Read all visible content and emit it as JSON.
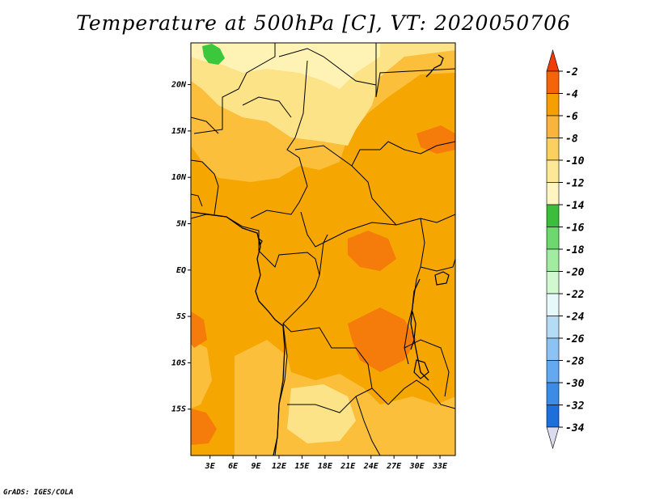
{
  "title": "Temperature at 500hPa [C], VT: 2020050706",
  "credit": "GrADS: IGES/COLA",
  "map": {
    "projection": "latlon",
    "lon_range": [
      0.5,
      35
    ],
    "lat_range": [
      -20,
      24.5
    ],
    "x_ticks": [
      "3E",
      "6E",
      "9E",
      "12E",
      "15E",
      "18E",
      "21E",
      "24E",
      "27E",
      "30E",
      "33E"
    ],
    "x_tick_values": [
      3,
      6,
      9,
      12,
      15,
      18,
      21,
      24,
      27,
      30,
      33
    ],
    "y_ticks": [
      "20N",
      "15N",
      "10N",
      "5N",
      "EQ",
      "5S",
      "10S",
      "15S"
    ],
    "y_tick_values": [
      20,
      15,
      10,
      5,
      0,
      -5,
      -10,
      -15
    ],
    "background_level_color": "#f5a600",
    "regions": [
      {
        "level": "-8 to -6",
        "color": "#fbbf3c"
      },
      {
        "level": "-10 to -8",
        "color": "#fde388"
      },
      {
        "level": "-12 to -10",
        "color": "#fef3b4"
      },
      {
        "level": "-4 to -2",
        "color": "#f57c0a"
      },
      {
        "level": "-14 to -12",
        "color": "#3cc83c"
      }
    ]
  },
  "colorbar": {
    "labels": [
      "-2",
      "-4",
      "-6",
      "-8",
      "-10",
      "-12",
      "-14",
      "-16",
      "-18",
      "-20",
      "-22",
      "-24",
      "-26",
      "-28",
      "-30",
      "-32",
      "-34"
    ],
    "top_arrow_color": "#f03c0a",
    "bottom_arrow_color": "#dcdcf0",
    "colors": [
      "#f56408",
      "#f5a000",
      "#f8b43c",
      "#fbd060",
      "#fde898",
      "#fff5c0",
      "#3cbe3c",
      "#6ed86e",
      "#a0eca0",
      "#d2f8d2",
      "#e6f8fa",
      "#b4dcf5",
      "#8cc3f5",
      "#64a8f0",
      "#3c8ce6",
      "#1e6edc",
      "#145ac8",
      "#0a3c9b",
      "#0a1e64"
    ]
  }
}
